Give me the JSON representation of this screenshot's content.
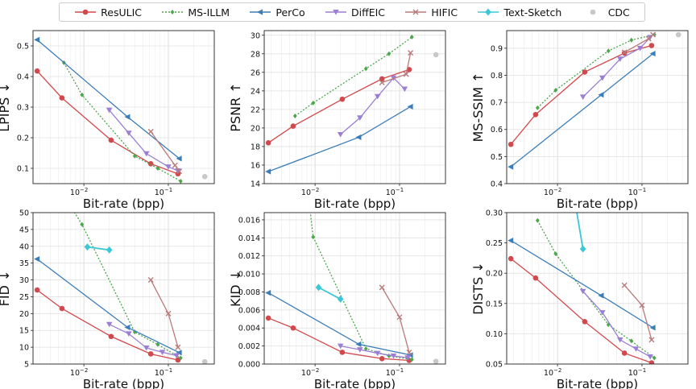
{
  "legend": {
    "items": [
      {
        "name": "ResULIC",
        "color": "#d1494c",
        "marker": "circle",
        "dash": false
      },
      {
        "name": "MS-ILLM",
        "color": "#4ca64c",
        "marker": "diamond",
        "dash": true
      },
      {
        "name": "PerCo",
        "color": "#3b7db8",
        "marker": "triangle-left",
        "dash": false
      },
      {
        "name": "DiffEIC",
        "color": "#9b7fd4",
        "marker": "triangle-down",
        "dash": false
      },
      {
        "name": "HIFIC",
        "color": "#b87a7a",
        "marker": "x",
        "dash": false
      },
      {
        "name": "Text-Sketch",
        "color": "#3cc7d6",
        "marker": "diamond-big",
        "dash": false
      },
      {
        "name": "CDC",
        "color": "#c8c8c8",
        "marker": "circle",
        "dash": false
      }
    ]
  },
  "chart_data": [
    {
      "type": "line",
      "ylabel": "LPIPS ↓",
      "xlabel": "Bit-rate (bpp)",
      "xscale": "log",
      "xlim": [
        0.0025,
        0.35
      ],
      "ylim": [
        0.05,
        0.55
      ],
      "yticks": [
        0.1,
        0.2,
        0.3,
        0.4,
        0.5
      ],
      "ytick_labels": [
        "0.1",
        "0.2",
        "0.3",
        "0.4",
        "0.5"
      ],
      "series": [
        {
          "name": "ResULIC",
          "x": [
            0.0028,
            0.0055,
            0.021,
            0.062,
            0.13
          ],
          "y": [
            0.418,
            0.33,
            0.192,
            0.115,
            0.082
          ]
        },
        {
          "name": "MS-ILLM",
          "x": [
            0.0058,
            0.0095,
            0.04,
            0.075,
            0.14
          ],
          "y": [
            0.445,
            0.34,
            0.14,
            0.1,
            0.058
          ]
        },
        {
          "name": "PerCo",
          "x": [
            0.0028,
            0.033,
            0.135
          ],
          "y": [
            0.52,
            0.268,
            0.132
          ]
        },
        {
          "name": "DiffEIC",
          "x": [
            0.02,
            0.034,
            0.055,
            0.1,
            0.13
          ],
          "y": [
            0.29,
            0.215,
            0.148,
            0.105,
            0.092
          ]
        },
        {
          "name": "HIFIC",
          "x": [
            0.062,
            0.12,
            0.135
          ],
          "y": [
            0.22,
            0.11,
            0.09
          ]
        },
        {
          "name": "CDC",
          "x": [
            0.27
          ],
          "y": [
            0.073
          ]
        }
      ]
    },
    {
      "type": "line",
      "ylabel": "PSNR ↑",
      "xlabel": "Bit-rate (bpp)",
      "xscale": "log",
      "xlim": [
        0.0025,
        0.35
      ],
      "ylim": [
        14,
        30.5
      ],
      "yticks": [
        14,
        16,
        18,
        20,
        22,
        24,
        26,
        28,
        30
      ],
      "ytick_labels": [
        "14",
        "16",
        "18",
        "20",
        "22",
        "24",
        "26",
        "28",
        "30"
      ],
      "series": [
        {
          "name": "ResULIC",
          "x": [
            0.0028,
            0.0055,
            0.021,
            0.062,
            0.13
          ],
          "y": [
            18.4,
            20.2,
            23.1,
            25.3,
            26.3
          ]
        },
        {
          "name": "MS-ILLM",
          "x": [
            0.0058,
            0.0095,
            0.04,
            0.075,
            0.14
          ],
          "y": [
            21.3,
            22.7,
            26.4,
            28.0,
            29.8
          ]
        },
        {
          "name": "PerCo",
          "x": [
            0.0028,
            0.033,
            0.135
          ],
          "y": [
            15.3,
            19.0,
            22.3
          ]
        },
        {
          "name": "DiffEIC",
          "x": [
            0.02,
            0.034,
            0.055,
            0.085,
            0.115
          ],
          "y": [
            19.3,
            21.1,
            23.4,
            25.4,
            24.2
          ]
        },
        {
          "name": "HIFIC",
          "x": [
            0.062,
            0.12,
            0.135
          ],
          "y": [
            24.9,
            25.8,
            28.1
          ]
        },
        {
          "name": "CDC",
          "x": [
            0.27
          ],
          "y": [
            27.9
          ]
        }
      ]
    },
    {
      "type": "line",
      "ylabel": "MS-SSIM ↑",
      "xlabel": "Bit-rate (bpp)",
      "xscale": "log",
      "xlim": [
        0.0025,
        0.35
      ],
      "ylim": [
        0.4,
        0.965
      ],
      "yticks": [
        0.4,
        0.5,
        0.6,
        0.7,
        0.8,
        0.9
      ],
      "ytick_labels": [
        "0.4",
        "0.5",
        "0.6",
        "0.7",
        "0.8",
        "0.9"
      ],
      "series": [
        {
          "name": "ResULIC",
          "x": [
            0.0028,
            0.0055,
            0.021,
            0.062,
            0.13
          ],
          "y": [
            0.545,
            0.655,
            0.812,
            0.882,
            0.91
          ]
        },
        {
          "name": "MS-ILLM",
          "x": [
            0.0058,
            0.0095,
            0.04,
            0.075,
            0.14
          ],
          "y": [
            0.68,
            0.745,
            0.89,
            0.93,
            0.95
          ]
        },
        {
          "name": "PerCo",
          "x": [
            0.0028,
            0.033,
            0.135
          ],
          "y": [
            0.462,
            0.728,
            0.88
          ]
        },
        {
          "name": "DiffEIC",
          "x": [
            0.02,
            0.034,
            0.055,
            0.095,
            0.125
          ],
          "y": [
            0.72,
            0.79,
            0.86,
            0.9,
            0.94
          ]
        },
        {
          "name": "HIFIC",
          "x": [
            0.062,
            0.12,
            0.135
          ],
          "y": [
            0.885,
            0.935,
            0.95
          ]
        },
        {
          "name": "CDC",
          "x": [
            0.27
          ],
          "y": [
            0.95
          ]
        }
      ]
    },
    {
      "type": "line",
      "ylabel": "FID ↓",
      "xlabel": "Bit-rate (bpp)",
      "xscale": "log",
      "xlim": [
        0.0025,
        0.35
      ],
      "ylim": [
        5,
        50
      ],
      "yticks": [
        5,
        10,
        15,
        20,
        25,
        30,
        35,
        40,
        45,
        50
      ],
      "ytick_labels": [
        "5",
        "10",
        "15",
        "20",
        "25",
        "30",
        "35",
        "40",
        "45",
        "50"
      ],
      "series": [
        {
          "name": "ResULIC",
          "x": [
            0.0028,
            0.0055,
            0.021,
            0.062,
            0.13
          ],
          "y": [
            27.0,
            21.5,
            13.2,
            8.0,
            6.2
          ]
        },
        {
          "name": "MS-ILLM",
          "x": [
            0.0058,
            0.0095,
            0.04,
            0.075,
            0.14
          ],
          "y": [
            55.0,
            46.5,
            14.5,
            10.8,
            6.8
          ]
        },
        {
          "name": "PerCo",
          "x": [
            0.0028,
            0.033,
            0.135
          ],
          "y": [
            36.2,
            15.9,
            8.4
          ]
        },
        {
          "name": "DiffEIC",
          "x": [
            0.02,
            0.034,
            0.055,
            0.085,
            0.125
          ],
          "y": [
            16.8,
            14.0,
            9.8,
            8.5,
            7.5
          ]
        },
        {
          "name": "HIFIC",
          "x": [
            0.062,
            0.1,
            0.13
          ],
          "y": [
            30.0,
            20.0,
            10.0
          ]
        },
        {
          "name": "Text-Sketch",
          "x": [
            0.011,
            0.02
          ],
          "y": [
            39.8,
            38.9
          ]
        },
        {
          "name": "CDC",
          "x": [
            0.27
          ],
          "y": [
            5.7
          ]
        }
      ]
    },
    {
      "type": "line",
      "ylabel": "KID ↓",
      "xlabel": "Bit-rate (bpp)",
      "xscale": "log",
      "xlim": [
        0.0025,
        0.35
      ],
      "ylim": [
        0,
        0.0168
      ],
      "yticks": [
        0,
        0.002,
        0.004,
        0.006,
        0.008,
        0.01,
        0.012,
        0.014,
        0.016
      ],
      "ytick_labels": [
        "0.000",
        "0.002",
        "0.004",
        "0.006",
        "0.008",
        "0.010",
        "0.012",
        "0.014",
        "0.016"
      ],
      "series": [
        {
          "name": "ResULIC",
          "x": [
            0.0028,
            0.0055,
            0.021,
            0.062,
            0.13
          ],
          "y": [
            0.0051,
            0.004,
            0.0013,
            0.0006,
            0.0004
          ]
        },
        {
          "name": "MS-ILLM",
          "x": [
            0.0085,
            0.0095,
            0.04,
            0.075,
            0.14
          ],
          "y": [
            0.018,
            0.0141,
            0.0017,
            0.0009,
            0.0005
          ]
        },
        {
          "name": "PerCo",
          "x": [
            0.0028,
            0.033,
            0.135
          ],
          "y": [
            0.0079,
            0.0022,
            0.001
          ]
        },
        {
          "name": "DiffEIC",
          "x": [
            0.02,
            0.034,
            0.055,
            0.085,
            0.125
          ],
          "y": [
            0.002,
            0.0016,
            0.0012,
            0.0009,
            0.0007
          ]
        },
        {
          "name": "HIFIC",
          "x": [
            0.062,
            0.1,
            0.13
          ],
          "y": [
            0.0085,
            0.0052,
            0.0013
          ]
        },
        {
          "name": "Text-Sketch",
          "x": [
            0.011,
            0.02
          ],
          "y": [
            0.0085,
            0.0072
          ]
        },
        {
          "name": "CDC",
          "x": [
            0.27
          ],
          "y": [
            0.0003
          ]
        }
      ]
    },
    {
      "type": "line",
      "ylabel": "DISTS ↓",
      "xlabel": "Bit-rate (bpp)",
      "xscale": "log",
      "xlim": [
        0.0025,
        0.35
      ],
      "ylim": [
        0.05,
        0.3
      ],
      "yticks": [
        0.05,
        0.1,
        0.15,
        0.2,
        0.25,
        0.3
      ],
      "ytick_labels": [
        "0.05",
        "0.10",
        "0.15",
        "0.20",
        "0.25",
        "0.30"
      ],
      "series": [
        {
          "name": "ResULIC",
          "x": [
            0.0028,
            0.0055,
            0.021,
            0.062,
            0.13
          ],
          "y": [
            0.224,
            0.192,
            0.12,
            0.068,
            0.052
          ]
        },
        {
          "name": "MS-ILLM",
          "x": [
            0.0058,
            0.0095,
            0.04,
            0.075,
            0.14
          ],
          "y": [
            0.287,
            0.232,
            0.115,
            0.088,
            0.06
          ]
        },
        {
          "name": "PerCo",
          "x": [
            0.0028,
            0.033,
            0.135
          ],
          "y": [
            0.254,
            0.163,
            0.11
          ]
        },
        {
          "name": "DiffEIC",
          "x": [
            0.02,
            0.034,
            0.055,
            0.085,
            0.125
          ],
          "y": [
            0.17,
            0.135,
            0.09,
            0.075,
            0.062
          ]
        },
        {
          "name": "HIFIC",
          "x": [
            0.062,
            0.1,
            0.13
          ],
          "y": [
            0.18,
            0.147,
            0.09
          ]
        },
        {
          "name": "Text-Sketch",
          "x": [
            0.016,
            0.02
          ],
          "y": [
            0.32,
            0.24
          ]
        }
      ]
    }
  ]
}
